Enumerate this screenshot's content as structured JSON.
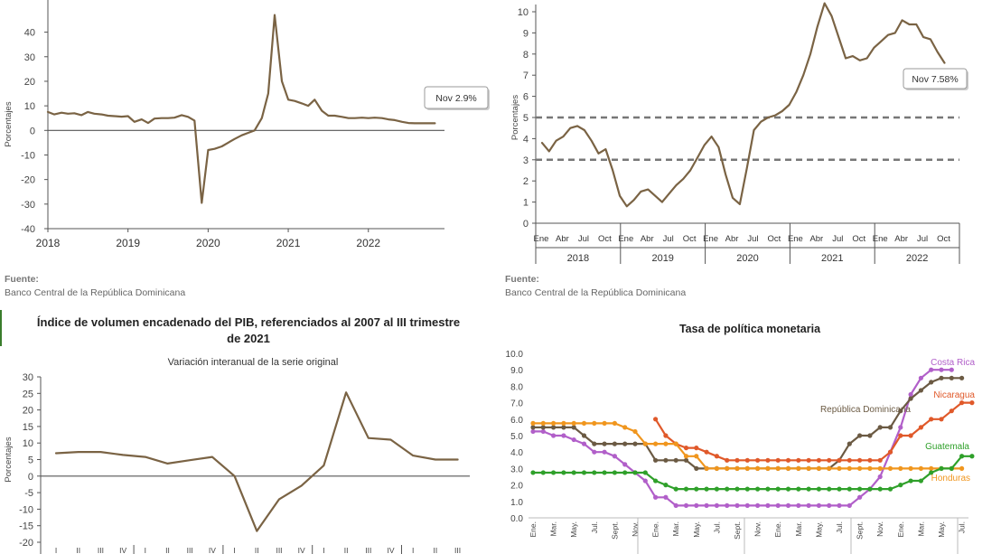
{
  "panels": {
    "p1": {
      "source_label": "Fuente:",
      "source_text": "Banco Central de la República Dominicana"
    },
    "p2": {
      "source_label": "Fuente:",
      "source_text": "Banco Central de la República Dominicana"
    },
    "p3": {
      "title": "Índice de volumen encadenado del PIB, referenciados al 2007 al III trimestre de 2021",
      "subtitle": "Variación interanual de la serie original"
    },
    "p4": {
      "title": "Tasa de política monetaria"
    }
  },
  "colors": {
    "brown": "#7a6344",
    "axis": "#555555",
    "dash": "#777777",
    "purple": "#b15fc9",
    "darkbrown": "#6b5a43",
    "red": "#e0592a",
    "orange": "#f0961e",
    "green": "#2fa02a"
  },
  "chart_data": [
    {
      "type": "line",
      "ylabel": "Porcentajes",
      "ylim": [
        -40,
        45
      ],
      "yticks": [
        -40,
        -30,
        -20,
        -10,
        0,
        10,
        20,
        30,
        40
      ],
      "xlim": [
        2018,
        2022.95
      ],
      "xticks": [
        2018,
        2019,
        2020,
        2021,
        2022
      ],
      "annotation": "Nov 2.9%",
      "series": [
        {
          "x": [
            2018.0,
            2018.08,
            2018.17,
            2018.25,
            2018.33,
            2018.42,
            2018.5,
            2018.58,
            2018.67,
            2018.75,
            2018.83,
            2018.92,
            2019.0,
            2019.08,
            2019.17,
            2019.25,
            2019.33,
            2019.42,
            2019.5,
            2019.58,
            2019.67,
            2019.75,
            2019.83,
            2019.92,
            2020.0,
            2020.08,
            2020.17,
            2020.25,
            2020.33,
            2020.42,
            2020.5,
            2020.58,
            2020.67,
            2020.75,
            2020.83,
            2020.92,
            2021.0,
            2021.08,
            2021.17,
            2021.25,
            2021.33,
            2021.42,
            2021.5,
            2021.58,
            2021.67,
            2021.75,
            2021.83,
            2021.92,
            2022.0,
            2022.08,
            2022.17,
            2022.25,
            2022.33,
            2022.42,
            2022.5,
            2022.58,
            2022.67,
            2022.75,
            2022.83
          ],
          "y": [
            7.5,
            6.5,
            7.2,
            6.8,
            7.0,
            6.2,
            7.5,
            6.8,
            6.5,
            6.0,
            5.8,
            5.6,
            5.8,
            3.5,
            4.5,
            3.0,
            4.8,
            5.0,
            5.0,
            5.2,
            6.2,
            5.5,
            4.0,
            -29.5,
            -8.0,
            -7.5,
            -6.5,
            -5.0,
            -3.5,
            -2.0,
            -1.0,
            0.0,
            5.0,
            15.0,
            47.0,
            20.0,
            12.5,
            12.0,
            11.0,
            10.0,
            12.5,
            8.0,
            6.0,
            6.0,
            5.5,
            5.0,
            5.0,
            5.2,
            5.0,
            5.2,
            5.0,
            4.5,
            4.2,
            3.5,
            3.0,
            2.9,
            2.9,
            2.9,
            2.9
          ]
        }
      ]
    },
    {
      "type": "line",
      "ylabel": "Porcentajes",
      "ylim": [
        0,
        10
      ],
      "yticks": [
        0,
        1,
        2,
        3,
        4,
        5,
        6,
        7,
        8,
        9,
        10
      ],
      "month_labels": [
        "Ene",
        "Abr",
        "Jul",
        "Oct"
      ],
      "years": [
        "2018",
        "2019",
        "2020",
        "2021",
        "2022"
      ],
      "reference_lines": [
        5,
        3
      ],
      "annotation": "Nov 7.58%",
      "series": [
        {
          "y": [
            3.8,
            3.4,
            3.9,
            4.1,
            4.5,
            4.6,
            4.4,
            3.9,
            3.3,
            3.5,
            2.5,
            1.3,
            0.8,
            1.1,
            1.5,
            1.6,
            1.3,
            1.0,
            1.4,
            1.8,
            2.1,
            2.5,
            3.1,
            3.7,
            4.1,
            3.6,
            2.3,
            1.2,
            0.9,
            2.6,
            4.4,
            4.8,
            5.0,
            5.1,
            5.3,
            5.6,
            6.2,
            7.0,
            8.0,
            9.3,
            10.4,
            9.8,
            8.8,
            7.8,
            7.9,
            7.7,
            7.8,
            8.3,
            8.6,
            8.9,
            9.0,
            9.6,
            9.4,
            9.4,
            8.8,
            8.7,
            8.1,
            7.58
          ]
        }
      ]
    },
    {
      "type": "line",
      "ylabel": "Porcentajes",
      "ylim": [
        -20,
        30
      ],
      "yticks": [
        -20,
        -15,
        -10,
        -5,
        0,
        5,
        10,
        15,
        20,
        25,
        30
      ],
      "quarter_labels": [
        "I",
        "II",
        "III",
        "IV"
      ],
      "series": [
        {
          "x": [
            0,
            1,
            2,
            3,
            4,
            5,
            6,
            7,
            8,
            9,
            10,
            11,
            12,
            13,
            14,
            15,
            16,
            17,
            18
          ],
          "y": [
            6.9,
            7.3,
            7.3,
            6.4,
            5.8,
            3.8,
            4.8,
            5.8,
            0.0,
            -16.6,
            -7.0,
            -2.9,
            3.2,
            25.3,
            11.5,
            11.0,
            6.2,
            5.0,
            5.0
          ]
        }
      ]
    },
    {
      "type": "line",
      "ylim": [
        0,
        10
      ],
      "yticks": [
        "0.0",
        "1.0",
        "2.0",
        "3.0",
        "4.0",
        "5.0",
        "6.0",
        "7.0",
        "8.0",
        "9.0",
        "10.0"
      ],
      "month_labels": [
        "Ene.",
        "Mar.",
        "May.",
        "Jul.",
        "Sept.",
        "Nov."
      ],
      "series": [
        {
          "name": "Costa Rica",
          "color": "#b15fc9",
          "values": [
            5.25,
            5.25,
            5.0,
            5.0,
            4.75,
            4.5,
            4.0,
            4.0,
            3.75,
            3.25,
            2.75,
            2.25,
            1.25,
            1.25,
            0.75,
            0.75,
            0.75,
            0.75,
            0.75,
            0.75,
            0.75,
            0.75,
            0.75,
            0.75,
            0.75,
            0.75,
            0.75,
            0.75,
            0.75,
            0.75,
            0.75,
            0.75,
            1.25,
            1.75,
            2.5,
            4.0,
            5.5,
            7.5,
            8.5,
            9.0,
            9.0,
            9.0
          ]
        },
        {
          "name": "República Dominicana",
          "color": "#6b5a43",
          "values": [
            5.5,
            5.5,
            5.5,
            5.5,
            5.5,
            5.0,
            4.5,
            4.5,
            4.5,
            4.5,
            4.5,
            4.5,
            3.5,
            3.5,
            3.5,
            3.5,
            3.0,
            3.0,
            3.0,
            3.0,
            3.0,
            3.0,
            3.0,
            3.0,
            3.0,
            3.0,
            3.0,
            3.0,
            3.0,
            3.0,
            3.5,
            4.5,
            5.0,
            5.0,
            5.5,
            5.5,
            6.5,
            7.25,
            7.75,
            8.25,
            8.5,
            8.5,
            8.5
          ]
        },
        {
          "name": "Nicaragua",
          "color": "#e0592a",
          "values": [
            null,
            null,
            null,
            null,
            null,
            null,
            null,
            null,
            null,
            null,
            null,
            null,
            6.0,
            5.0,
            4.5,
            4.25,
            4.25,
            4.0,
            3.75,
            3.5,
            3.5,
            3.5,
            3.5,
            3.5,
            3.5,
            3.5,
            3.5,
            3.5,
            3.5,
            3.5,
            3.5,
            3.5,
            3.5,
            3.5,
            3.5,
            4.0,
            5.0,
            5.0,
            5.5,
            6.0,
            6.0,
            6.5,
            7.0,
            7.0
          ]
        },
        {
          "name": "Honduras",
          "color": "#f0961e",
          "values": [
            5.75,
            5.75,
            5.75,
            5.75,
            5.75,
            5.75,
            5.75,
            5.75,
            5.75,
            5.5,
            5.25,
            4.5,
            4.5,
            4.5,
            4.5,
            3.75,
            3.75,
            3.0,
            3.0,
            3.0,
            3.0,
            3.0,
            3.0,
            3.0,
            3.0,
            3.0,
            3.0,
            3.0,
            3.0,
            3.0,
            3.0,
            3.0,
            3.0,
            3.0,
            3.0,
            3.0,
            3.0,
            3.0,
            3.0,
            3.0,
            3.0,
            3.0,
            3.0
          ]
        },
        {
          "name": "Guatemala",
          "color": "#2fa02a",
          "values": [
            2.75,
            2.75,
            2.75,
            2.75,
            2.75,
            2.75,
            2.75,
            2.75,
            2.75,
            2.75,
            2.75,
            2.75,
            2.25,
            2.0,
            1.75,
            1.75,
            1.75,
            1.75,
            1.75,
            1.75,
            1.75,
            1.75,
            1.75,
            1.75,
            1.75,
            1.75,
            1.75,
            1.75,
            1.75,
            1.75,
            1.75,
            1.75,
            1.75,
            1.75,
            1.75,
            1.75,
            2.0,
            2.25,
            2.25,
            2.75,
            3.0,
            3.0,
            3.75,
            3.75
          ]
        }
      ]
    }
  ]
}
